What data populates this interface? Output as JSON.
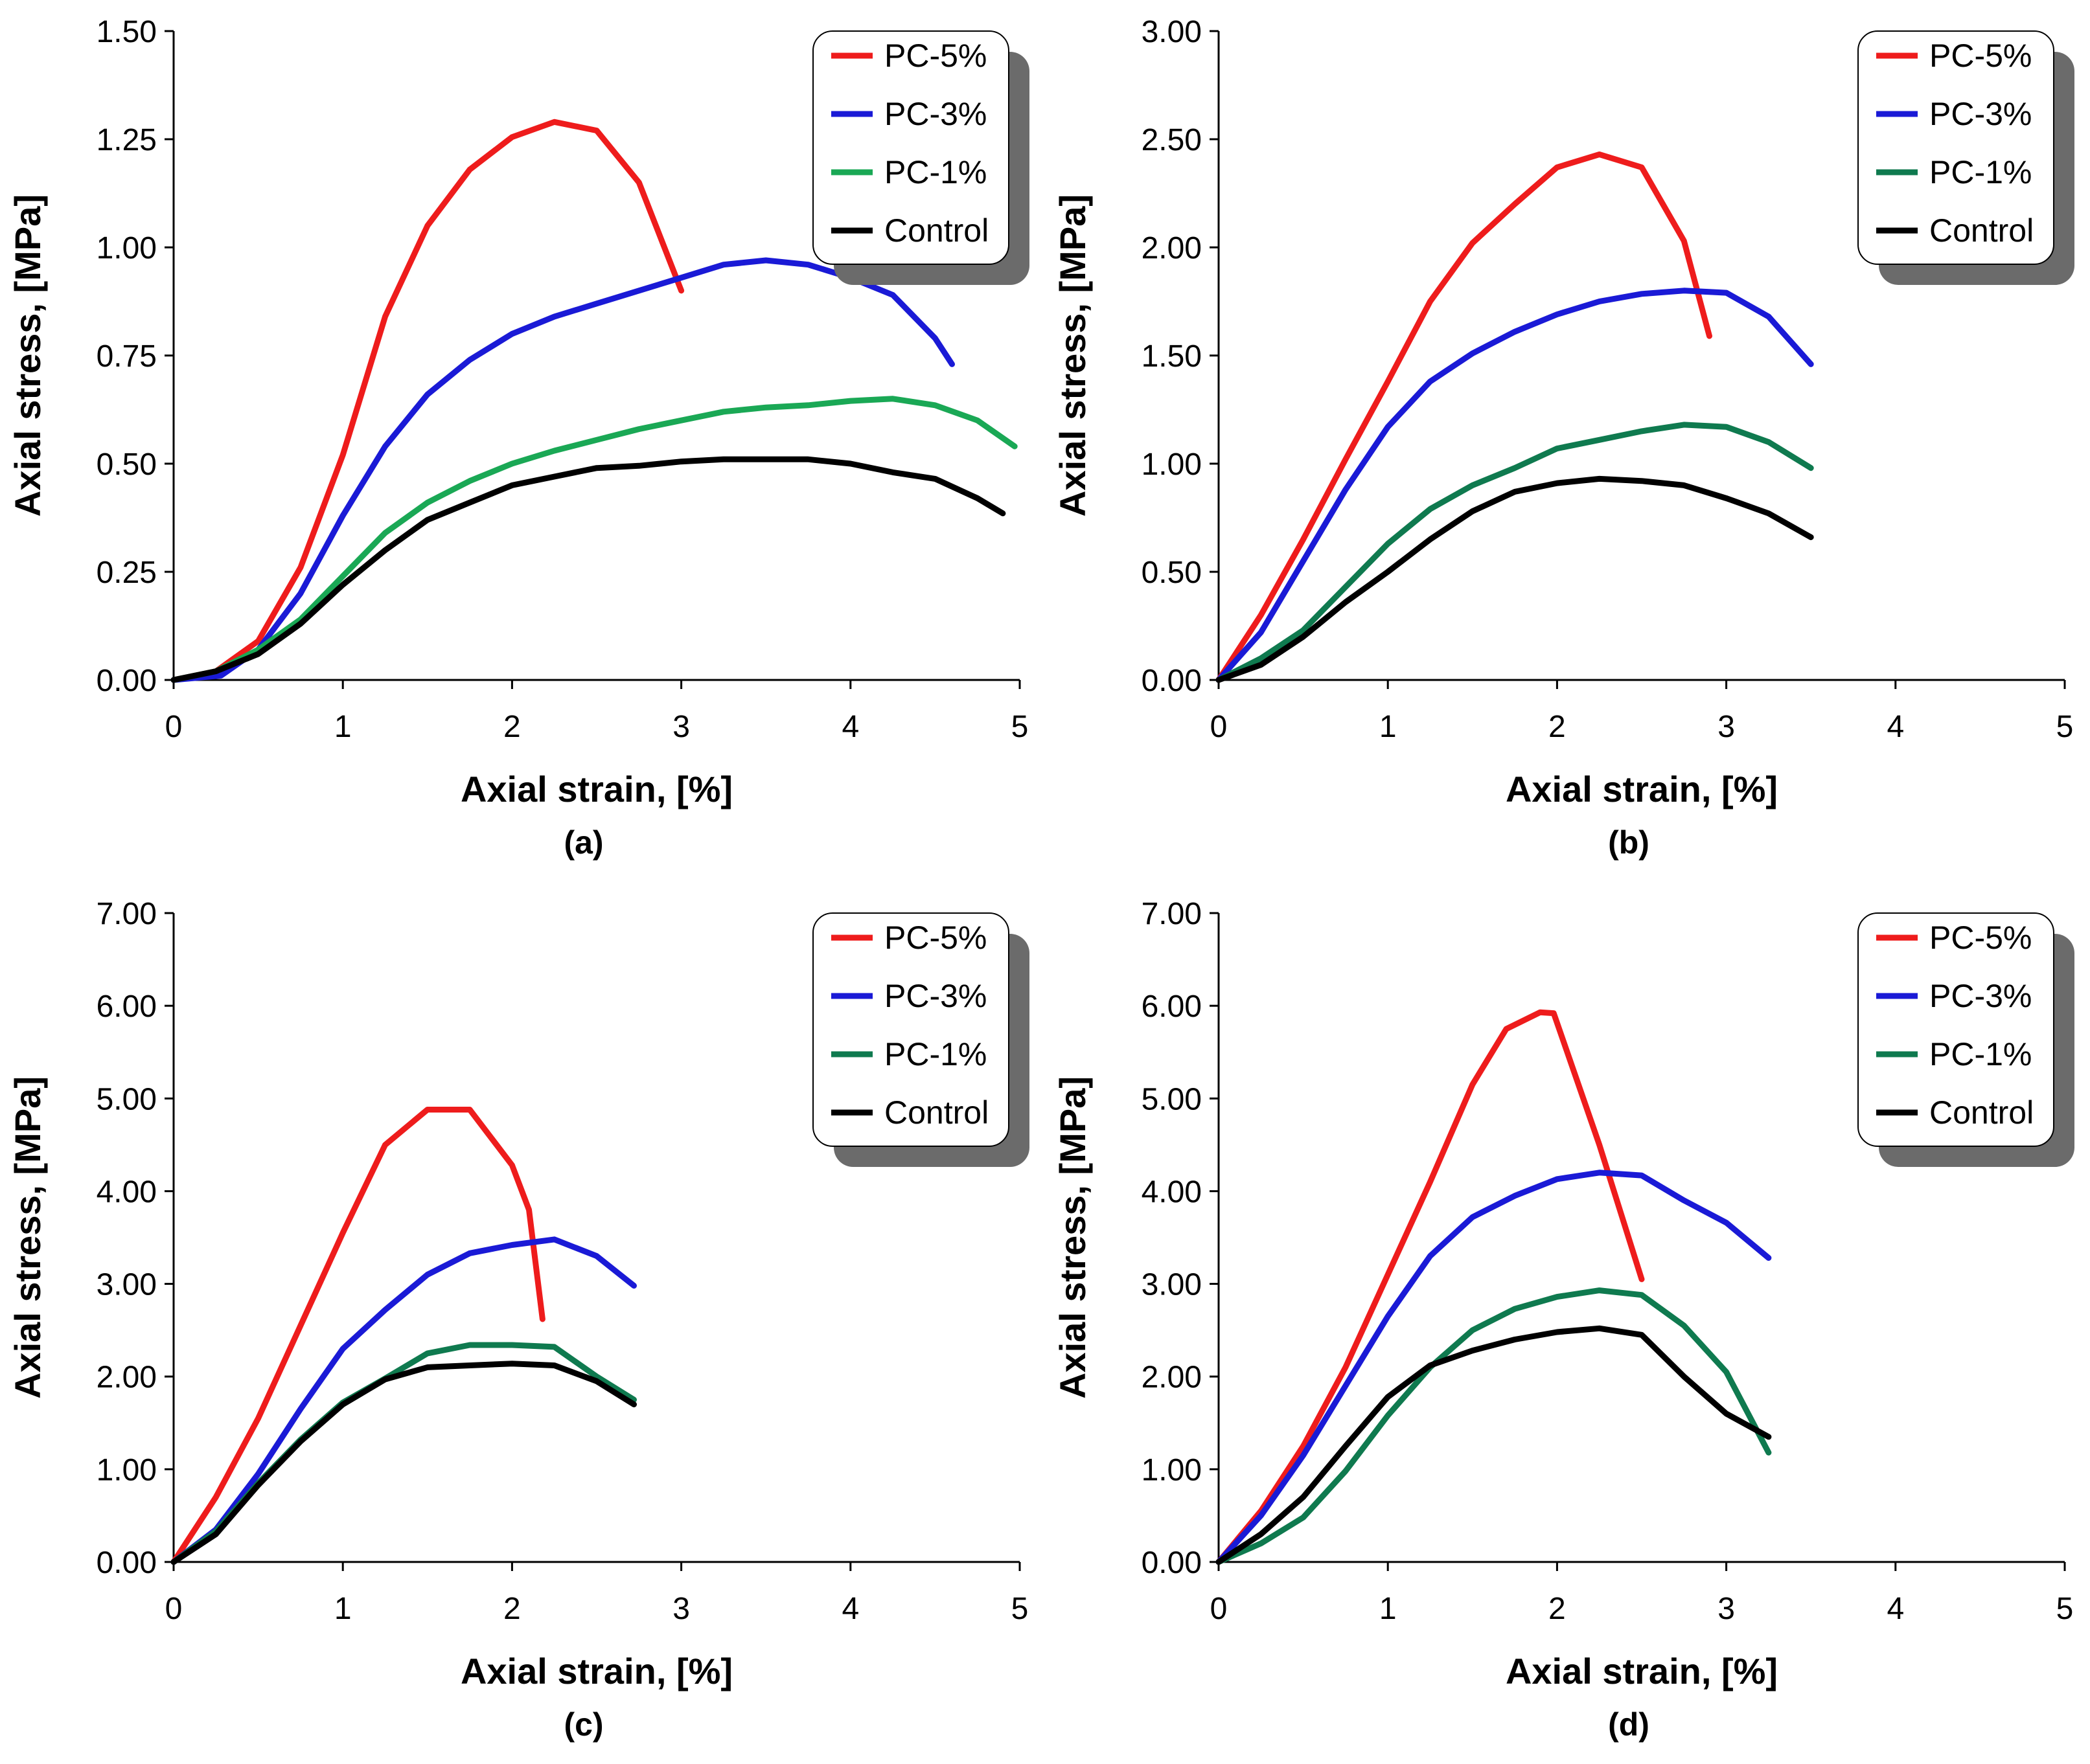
{
  "chart_data": [
    {
      "type": "line",
      "panel_label": "(a)",
      "xlabel": "Axial strain, [%]",
      "ylabel": "Axial stress, [MPa]",
      "xlim": [
        0,
        5
      ],
      "ylim": [
        0,
        1.5
      ],
      "x_ticks": [
        "0",
        "1",
        "2",
        "3",
        "4",
        "5"
      ],
      "y_ticks": [
        "0.00",
        "0.25",
        "0.50",
        "0.75",
        "1.00",
        "1.25",
        "1.50"
      ],
      "legend_position": "top-right",
      "series": [
        {
          "name": "PC-5%",
          "color": "#ee1c1c",
          "points": [
            [
              0,
              0
            ],
            [
              0.25,
              0.02
            ],
            [
              0.5,
              0.09
            ],
            [
              0.75,
              0.26
            ],
            [
              1.0,
              0.52
            ],
            [
              1.25,
              0.84
            ],
            [
              1.5,
              1.05
            ],
            [
              1.75,
              1.18
            ],
            [
              2.0,
              1.255
            ],
            [
              2.25,
              1.29
            ],
            [
              2.5,
              1.27
            ],
            [
              2.75,
              1.15
            ],
            [
              3.0,
              0.9
            ]
          ]
        },
        {
          "name": "PC-3%",
          "color": "#1a1ad6",
          "points": [
            [
              0,
              0
            ],
            [
              0.28,
              0.01
            ],
            [
              0.5,
              0.07
            ],
            [
              0.75,
              0.2
            ],
            [
              1.0,
              0.38
            ],
            [
              1.25,
              0.54
            ],
            [
              1.5,
              0.66
            ],
            [
              1.75,
              0.74
            ],
            [
              2.0,
              0.8
            ],
            [
              2.25,
              0.84
            ],
            [
              2.5,
              0.87
            ],
            [
              2.75,
              0.9
            ],
            [
              3.0,
              0.93
            ],
            [
              3.25,
              0.96
            ],
            [
              3.5,
              0.97
            ],
            [
              3.75,
              0.96
            ],
            [
              4.0,
              0.93
            ],
            [
              4.25,
              0.89
            ],
            [
              4.5,
              0.79
            ],
            [
              4.6,
              0.73
            ]
          ]
        },
        {
          "name": "PC-1%",
          "color": "#1aa855",
          "points": [
            [
              0,
              0
            ],
            [
              0.25,
              0.02
            ],
            [
              0.5,
              0.07
            ],
            [
              0.75,
              0.14
            ],
            [
              1.0,
              0.24
            ],
            [
              1.25,
              0.34
            ],
            [
              1.5,
              0.41
            ],
            [
              1.75,
              0.46
            ],
            [
              2.0,
              0.5
            ],
            [
              2.25,
              0.53
            ],
            [
              2.5,
              0.555
            ],
            [
              2.75,
              0.58
            ],
            [
              3.0,
              0.6
            ],
            [
              3.25,
              0.62
            ],
            [
              3.5,
              0.63
            ],
            [
              3.75,
              0.635
            ],
            [
              4.0,
              0.645
            ],
            [
              4.25,
              0.65
            ],
            [
              4.5,
              0.635
            ],
            [
              4.75,
              0.6
            ],
            [
              4.97,
              0.54
            ]
          ]
        },
        {
          "name": "Control",
          "color": "#000000",
          "points": [
            [
              0,
              0
            ],
            [
              0.25,
              0.02
            ],
            [
              0.5,
              0.06
            ],
            [
              0.75,
              0.13
            ],
            [
              1.0,
              0.22
            ],
            [
              1.25,
              0.3
            ],
            [
              1.5,
              0.37
            ],
            [
              1.75,
              0.41
            ],
            [
              2.0,
              0.45
            ],
            [
              2.25,
              0.47
            ],
            [
              2.5,
              0.49
            ],
            [
              2.75,
              0.495
            ],
            [
              3.0,
              0.505
            ],
            [
              3.25,
              0.51
            ],
            [
              3.5,
              0.51
            ],
            [
              3.75,
              0.51
            ],
            [
              4.0,
              0.5
            ],
            [
              4.25,
              0.48
            ],
            [
              4.5,
              0.465
            ],
            [
              4.75,
              0.42
            ],
            [
              4.9,
              0.385
            ]
          ]
        }
      ]
    },
    {
      "type": "line",
      "panel_label": "(b)",
      "xlabel": "Axial strain, [%]",
      "ylabel": "Axial stress, [MPa]",
      "xlim": [
        0,
        5
      ],
      "ylim": [
        0,
        3.0
      ],
      "x_ticks": [
        "0",
        "1",
        "2",
        "3",
        "4",
        "5"
      ],
      "y_ticks": [
        "0.00",
        "0.50",
        "1.00",
        "1.50",
        "2.00",
        "2.50",
        "3.00"
      ],
      "legend_position": "top-right",
      "series": [
        {
          "name": "PC-5%",
          "color": "#ee1c1c",
          "points": [
            [
              0,
              0
            ],
            [
              0.25,
              0.3
            ],
            [
              0.5,
              0.65
            ],
            [
              0.75,
              1.02
            ],
            [
              1.0,
              1.38
            ],
            [
              1.25,
              1.75
            ],
            [
              1.5,
              2.02
            ],
            [
              1.75,
              2.2
            ],
            [
              2.0,
              2.37
            ],
            [
              2.25,
              2.43
            ],
            [
              2.5,
              2.37
            ],
            [
              2.75,
              2.03
            ],
            [
              2.9,
              1.59
            ]
          ]
        },
        {
          "name": "PC-3%",
          "color": "#1a1ad6",
          "points": [
            [
              0,
              0
            ],
            [
              0.25,
              0.22
            ],
            [
              0.5,
              0.55
            ],
            [
              0.75,
              0.88
            ],
            [
              1.0,
              1.17
            ],
            [
              1.25,
              1.38
            ],
            [
              1.5,
              1.51
            ],
            [
              1.75,
              1.61
            ],
            [
              2.0,
              1.69
            ],
            [
              2.25,
              1.75
            ],
            [
              2.5,
              1.785
            ],
            [
              2.75,
              1.8
            ],
            [
              3.0,
              1.79
            ],
            [
              3.25,
              1.68
            ],
            [
              3.5,
              1.46
            ]
          ]
        },
        {
          "name": "PC-1%",
          "color": "#0f7a4f",
          "points": [
            [
              0,
              0
            ],
            [
              0.25,
              0.1
            ],
            [
              0.5,
              0.23
            ],
            [
              0.75,
              0.43
            ],
            [
              1.0,
              0.63
            ],
            [
              1.25,
              0.79
            ],
            [
              1.5,
              0.9
            ],
            [
              1.75,
              0.98
            ],
            [
              2.0,
              1.07
            ],
            [
              2.25,
              1.11
            ],
            [
              2.5,
              1.15
            ],
            [
              2.75,
              1.18
            ],
            [
              3.0,
              1.17
            ],
            [
              3.25,
              1.1
            ],
            [
              3.5,
              0.98
            ]
          ]
        },
        {
          "name": "Control",
          "color": "#000000",
          "points": [
            [
              0,
              0
            ],
            [
              0.25,
              0.07
            ],
            [
              0.5,
              0.2
            ],
            [
              0.75,
              0.36
            ],
            [
              1.0,
              0.5
            ],
            [
              1.25,
              0.65
            ],
            [
              1.5,
              0.78
            ],
            [
              1.75,
              0.87
            ],
            [
              2.0,
              0.91
            ],
            [
              2.25,
              0.93
            ],
            [
              2.5,
              0.92
            ],
            [
              2.75,
              0.9
            ],
            [
              3.0,
              0.84
            ],
            [
              3.25,
              0.77
            ],
            [
              3.5,
              0.66
            ]
          ]
        }
      ]
    },
    {
      "type": "line",
      "panel_label": "(c)",
      "xlabel": "Axial strain, [%]",
      "ylabel": "Axial stress, [MPa]",
      "xlim": [
        0,
        5
      ],
      "ylim": [
        0,
        7.0
      ],
      "x_ticks": [
        "0",
        "1",
        "2",
        "3",
        "4",
        "5"
      ],
      "y_ticks": [
        "0.00",
        "1.00",
        "2.00",
        "3.00",
        "4.00",
        "5.00",
        "6.00",
        "7.00"
      ],
      "legend_position": "top-right",
      "series": [
        {
          "name": "PC-5%",
          "color": "#ee1c1c",
          "points": [
            [
              0,
              0
            ],
            [
              0.25,
              0.7
            ],
            [
              0.5,
              1.55
            ],
            [
              0.75,
              2.55
            ],
            [
              1.0,
              3.55
            ],
            [
              1.25,
              4.5
            ],
            [
              1.5,
              4.88
            ],
            [
              1.75,
              4.88
            ],
            [
              2.0,
              4.28
            ],
            [
              2.1,
              3.8
            ],
            [
              2.18,
              2.62
            ]
          ]
        },
        {
          "name": "PC-3%",
          "color": "#1a1ad6",
          "points": [
            [
              0,
              0
            ],
            [
              0.25,
              0.35
            ],
            [
              0.5,
              0.95
            ],
            [
              0.75,
              1.65
            ],
            [
              1.0,
              2.3
            ],
            [
              1.25,
              2.72
            ],
            [
              1.5,
              3.1
            ],
            [
              1.75,
              3.33
            ],
            [
              2.0,
              3.42
            ],
            [
              2.25,
              3.48
            ],
            [
              2.5,
              3.3
            ],
            [
              2.72,
              2.98
            ]
          ]
        },
        {
          "name": "PC-1%",
          "color": "#0f7a4f",
          "points": [
            [
              0,
              0
            ],
            [
              0.25,
              0.33
            ],
            [
              0.5,
              0.85
            ],
            [
              0.75,
              1.32
            ],
            [
              1.0,
              1.72
            ],
            [
              1.25,
              1.98
            ],
            [
              1.5,
              2.25
            ],
            [
              1.75,
              2.34
            ],
            [
              2.0,
              2.34
            ],
            [
              2.25,
              2.32
            ],
            [
              2.5,
              2.0
            ],
            [
              2.72,
              1.75
            ]
          ]
        },
        {
          "name": "Control",
          "color": "#000000",
          "points": [
            [
              0,
              0
            ],
            [
              0.25,
              0.3
            ],
            [
              0.5,
              0.83
            ],
            [
              0.75,
              1.3
            ],
            [
              1.0,
              1.7
            ],
            [
              1.25,
              1.97
            ],
            [
              1.5,
              2.1
            ],
            [
              1.75,
              2.12
            ],
            [
              2.0,
              2.14
            ],
            [
              2.25,
              2.12
            ],
            [
              2.5,
              1.95
            ],
            [
              2.72,
              1.7
            ]
          ]
        }
      ]
    },
    {
      "type": "line",
      "panel_label": "(d)",
      "xlabel": "Axial strain, [%]",
      "ylabel": "Axial stress, [MPa]",
      "xlim": [
        0,
        5
      ],
      "ylim": [
        0,
        7.0
      ],
      "x_ticks": [
        "0",
        "1",
        "2",
        "3",
        "4",
        "5"
      ],
      "y_ticks": [
        "0.00",
        "1.00",
        "2.00",
        "3.00",
        "4.00",
        "5.00",
        "6.00",
        "7.00"
      ],
      "legend_position": "top-right",
      "series": [
        {
          "name": "PC-5%",
          "color": "#ee1c1c",
          "points": [
            [
              0,
              0
            ],
            [
              0.25,
              0.55
            ],
            [
              0.5,
              1.25
            ],
            [
              0.75,
              2.1
            ],
            [
              1.0,
              3.1
            ],
            [
              1.25,
              4.1
            ],
            [
              1.5,
              5.15
            ],
            [
              1.7,
              5.75
            ],
            [
              1.9,
              5.93
            ],
            [
              1.98,
              5.92
            ],
            [
              2.25,
              4.5
            ],
            [
              2.5,
              3.05
            ]
          ]
        },
        {
          "name": "PC-3%",
          "color": "#1a1ad6",
          "points": [
            [
              0,
              0
            ],
            [
              0.25,
              0.5
            ],
            [
              0.5,
              1.15
            ],
            [
              0.75,
              1.9
            ],
            [
              1.0,
              2.65
            ],
            [
              1.25,
              3.3
            ],
            [
              1.5,
              3.72
            ],
            [
              1.75,
              3.95
            ],
            [
              2.0,
              4.13
            ],
            [
              2.25,
              4.2
            ],
            [
              2.5,
              4.17
            ],
            [
              2.75,
              3.9
            ],
            [
              3.0,
              3.66
            ],
            [
              3.25,
              3.28
            ]
          ]
        },
        {
          "name": "PC-1%",
          "color": "#0f7a4f",
          "points": [
            [
              0,
              0
            ],
            [
              0.25,
              0.2
            ],
            [
              0.5,
              0.48
            ],
            [
              0.75,
              0.98
            ],
            [
              1.0,
              1.58
            ],
            [
              1.25,
              2.1
            ],
            [
              1.5,
              2.5
            ],
            [
              1.75,
              2.73
            ],
            [
              2.0,
              2.86
            ],
            [
              2.25,
              2.93
            ],
            [
              2.5,
              2.88
            ],
            [
              2.75,
              2.55
            ],
            [
              3.0,
              2.05
            ],
            [
              3.25,
              1.18
            ]
          ]
        },
        {
          "name": "Control",
          "color": "#000000",
          "points": [
            [
              0,
              0
            ],
            [
              0.25,
              0.3
            ],
            [
              0.5,
              0.7
            ],
            [
              0.75,
              1.25
            ],
            [
              1.0,
              1.78
            ],
            [
              1.25,
              2.12
            ],
            [
              1.5,
              2.28
            ],
            [
              1.75,
              2.4
            ],
            [
              2.0,
              2.48
            ],
            [
              2.25,
              2.52
            ],
            [
              2.5,
              2.45
            ],
            [
              2.75,
              2.0
            ],
            [
              3.0,
              1.6
            ],
            [
              3.25,
              1.35
            ]
          ]
        }
      ]
    }
  ]
}
